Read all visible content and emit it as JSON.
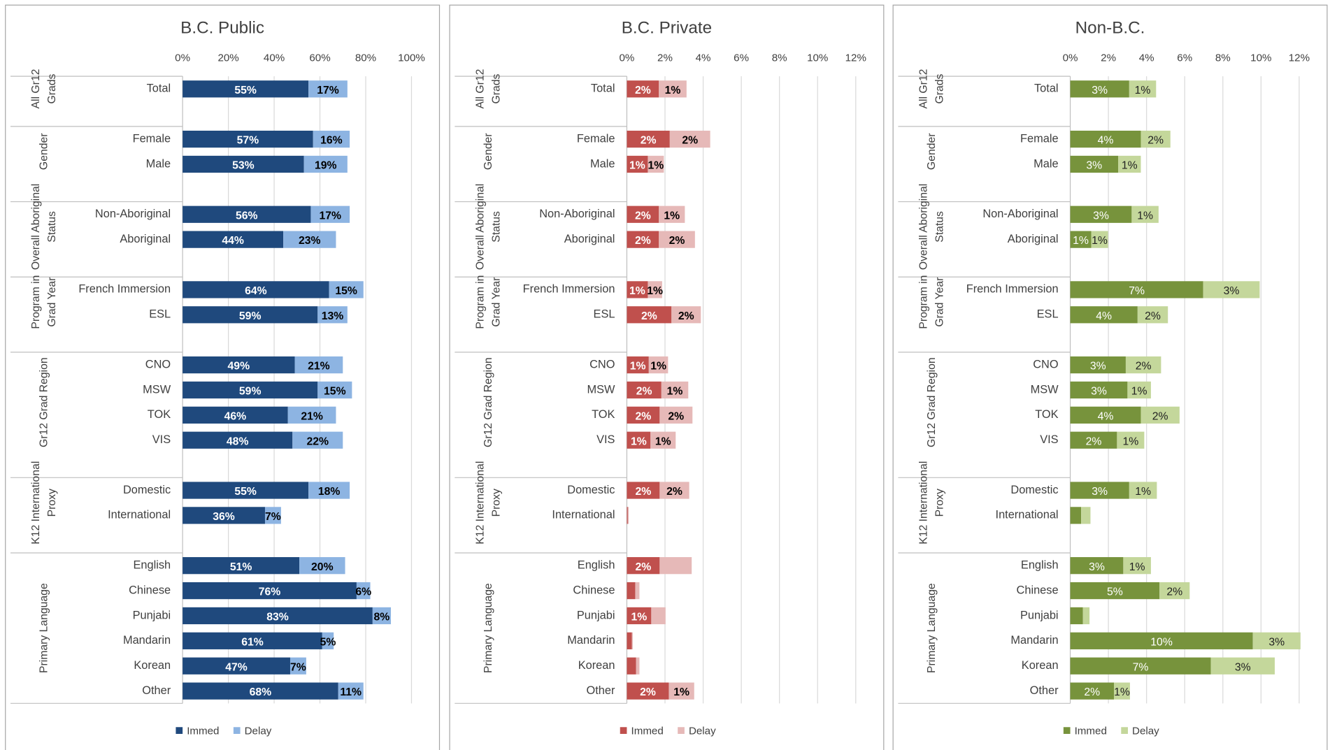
{
  "chart_data": [
    {
      "type": "bar",
      "title": "B.C. Public",
      "groups": [
        {
          "lines": [
            "All Gr12",
            "Grads"
          ],
          "categories": [
            "Total"
          ]
        },
        {
          "lines": [
            "Gender"
          ],
          "categories": [
            "Female",
            "Male"
          ]
        },
        {
          "lines": [
            "Overall Aboriginal",
            "Status"
          ],
          "categories": [
            "Non-Aboriginal",
            "Aboriginal"
          ]
        },
        {
          "lines": [
            "Program in",
            "Grad Year"
          ],
          "categories": [
            "French Immersion",
            "ESL"
          ]
        },
        {
          "lines": [
            "Gr12 Grad Region"
          ],
          "categories": [
            "CNO",
            "MSW",
            "TOK",
            "VIS"
          ]
        },
        {
          "lines": [
            "K12 International",
            "Proxy"
          ],
          "categories": [
            "Domestic",
            "International"
          ]
        },
        {
          "lines": [
            "Primary Language"
          ],
          "categories": [
            "English",
            "Chinese",
            "Punjabi",
            "Mandarin",
            "Korean",
            "Other"
          ]
        }
      ],
      "series": [
        {
          "name": "Immed",
          "color": "#1f497d",
          "values": [
            55,
            57,
            53,
            56,
            44,
            64,
            59,
            49,
            59,
            46,
            48,
            55,
            36,
            51,
            76,
            83,
            61,
            47,
            68
          ],
          "value_labels": [
            "55%",
            "57%",
            "53%",
            "56%",
            "44%",
            "64%",
            "59%",
            "49%",
            "59%",
            "46%",
            "48%",
            "55%",
            "36%",
            "51%",
            "76%",
            "83%",
            "61%",
            "47%",
            "68%"
          ]
        },
        {
          "name": "Delay",
          "color": "#8db4e2",
          "values": [
            17,
            16,
            19,
            17,
            23,
            15,
            13,
            21,
            15,
            21,
            22,
            18,
            7,
            20,
            6,
            8,
            5,
            7,
            11
          ],
          "value_labels": [
            "17%",
            "16%",
            "19%",
            "17%",
            "23%",
            "15%",
            "13%",
            "21%",
            "15%",
            "21%",
            "22%",
            "18%",
            "7%",
            "20%",
            "6%",
            "8%",
            "5%",
            "7%",
            "11%"
          ]
        }
      ],
      "xlim": [
        0,
        100
      ],
      "xticks": [
        {
          "value": 0,
          "label": "0%"
        },
        {
          "value": 20,
          "label": "20%"
        },
        {
          "value": 40,
          "label": "40%"
        },
        {
          "value": 60,
          "label": "60%"
        },
        {
          "value": 80,
          "label": "80%"
        },
        {
          "value": 100,
          "label": "100%"
        }
      ],
      "grid": true,
      "legend": "bottom"
    },
    {
      "type": "bar",
      "title": "B.C. Private",
      "groups": [
        {
          "lines": [
            "All Gr12",
            "Grads"
          ],
          "categories": [
            "Total"
          ]
        },
        {
          "lines": [
            "Gender"
          ],
          "categories": [
            "Female",
            "Male"
          ]
        },
        {
          "lines": [
            "Overall Aboriginal",
            "Status"
          ],
          "categories": [
            "Non-Aboriginal",
            "Aboriginal"
          ]
        },
        {
          "lines": [
            "Program in",
            "Grad Year"
          ],
          "categories": [
            "French Immersion",
            "ESL"
          ]
        },
        {
          "lines": [
            "Gr12 Grad Region"
          ],
          "categories": [
            "CNO",
            "MSW",
            "TOK",
            "VIS"
          ]
        },
        {
          "lines": [
            "K12 International",
            "Proxy"
          ],
          "categories": [
            "Domestic",
            "International"
          ]
        },
        {
          "lines": [
            "Primary Language"
          ],
          "categories": [
            "English",
            "Chinese",
            "Punjabi",
            "Mandarin",
            "Korean",
            "Other"
          ]
        }
      ],
      "series": [
        {
          "name": "Immed",
          "color": "#c0504d",
          "values": [
            1.68,
            2.25,
            1.1,
            1.68,
            1.68,
            1.1,
            2.34,
            1.15,
            1.81,
            1.72,
            1.24,
            1.72,
            0.05,
            1.72,
            0.44,
            1.28,
            0.26,
            0.48,
            2.2
          ],
          "value_labels": [
            "2%",
            "2%",
            "1%",
            "2%",
            "2%",
            "1%",
            "2%",
            "1%",
            "2%",
            "2%",
            "1%",
            "2%",
            null,
            "2%",
            null,
            "1%",
            null,
            null,
            "2%"
          ]
        },
        {
          "name": "Delay",
          "color": "#e6b9b8",
          "values": [
            1.45,
            2.12,
            0.84,
            1.36,
            1.89,
            0.75,
            1.54,
            1.01,
            1.41,
            1.72,
            1.32,
            1.55,
            0.05,
            1.68,
            0.22,
            0.75,
            0.05,
            0.18,
            1.33
          ],
          "value_labels": [
            "1%",
            "2%",
            "1%",
            "1%",
            "2%",
            "1%",
            "2%",
            "1%",
            "1%",
            "2%",
            "1%",
            "2%",
            null,
            null,
            null,
            null,
            null,
            null,
            "1%"
          ]
        }
      ],
      "xlim": [
        0,
        12
      ],
      "xticks": [
        {
          "value": 0,
          "label": "0%"
        },
        {
          "value": 2,
          "label": "2%"
        },
        {
          "value": 4,
          "label": "4%"
        },
        {
          "value": 6,
          "label": "6%"
        },
        {
          "value": 8,
          "label": "8%"
        },
        {
          "value": 10,
          "label": "10%"
        },
        {
          "value": 12,
          "label": "12%"
        }
      ],
      "grid": true,
      "legend": "bottom"
    },
    {
      "type": "bar",
      "title": "Non-B.C.",
      "groups": [
        {
          "lines": [
            "All Gr12",
            "Grads"
          ],
          "categories": [
            "Total"
          ]
        },
        {
          "lines": [
            "Gender"
          ],
          "categories": [
            "Female",
            "Male"
          ]
        },
        {
          "lines": [
            "Overall Aboriginal",
            "Status"
          ],
          "categories": [
            "Non-Aboriginal",
            "Aboriginal"
          ]
        },
        {
          "lines": [
            "Program in",
            "Grad Year"
          ],
          "categories": [
            "French Immersion",
            "ESL"
          ]
        },
        {
          "lines": [
            "Gr12 Grad Region"
          ],
          "categories": [
            "CNO",
            "MSW",
            "TOK",
            "VIS"
          ]
        },
        {
          "lines": [
            "K12 International",
            "Proxy"
          ],
          "categories": [
            "Domestic",
            "International"
          ]
        },
        {
          "lines": [
            "Primary Language"
          ],
          "categories": [
            "English",
            "Chinese",
            "Punjabi",
            "Mandarin",
            "Korean",
            "Other"
          ]
        }
      ],
      "series": [
        {
          "name": "Immed",
          "color": "#77933c",
          "values": [
            3.09,
            3.7,
            2.51,
            3.22,
            1.1,
            6.97,
            3.53,
            2.91,
            3.0,
            3.7,
            2.45,
            3.09,
            0.57,
            2.78,
            4.68,
            0.66,
            9.57,
            7.37,
            2.29
          ],
          "value_labels": [
            "3%",
            "4%",
            "3%",
            "3%",
            "1%",
            "7%",
            "4%",
            "3%",
            "3%",
            "4%",
            "2%",
            "3%",
            null,
            "3%",
            "5%",
            null,
            "10%",
            "7%",
            "2%"
          ]
        },
        {
          "name": "Delay",
          "color": "#c4d79b",
          "values": [
            1.41,
            1.55,
            1.19,
            1.41,
            0.88,
            2.96,
            1.59,
            1.85,
            1.23,
            2.03,
            1.43,
            1.45,
            0.49,
            1.45,
            1.58,
            0.35,
            2.5,
            3.35,
            0.84
          ],
          "value_labels": [
            "1%",
            "2%",
            "1%",
            "1%",
            "1%",
            "3%",
            "2%",
            "2%",
            "1%",
            "2%",
            "1%",
            "1%",
            null,
            "1%",
            "2%",
            null,
            "3%",
            "3%",
            "1%"
          ]
        }
      ],
      "xlim": [
        0,
        12
      ],
      "xticks": [
        {
          "value": 0,
          "label": "0%"
        },
        {
          "value": 2,
          "label": "2%"
        },
        {
          "value": 4,
          "label": "4%"
        },
        {
          "value": 6,
          "label": "6%"
        },
        {
          "value": 8,
          "label": "8%"
        },
        {
          "value": 10,
          "label": "10%"
        },
        {
          "value": 12,
          "label": "12%"
        }
      ],
      "grid": true,
      "legend": "bottom"
    }
  ]
}
